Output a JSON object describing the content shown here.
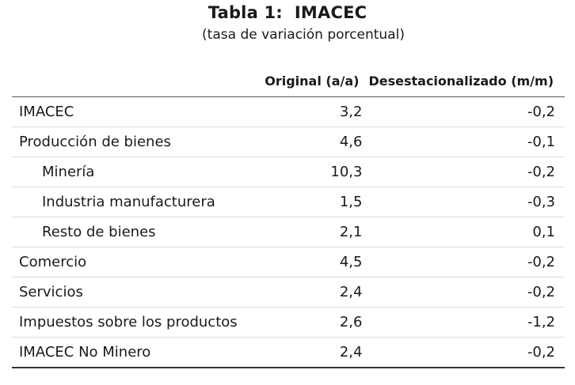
{
  "title": "Tabla 1:  IMACEC",
  "subtitle": "(tasa de variación porcentual)",
  "table": {
    "headers": {
      "label": "",
      "original": "Original (a/a)",
      "desestacionalizado": "Desestacionalizado (m/m)"
    },
    "rows": [
      {
        "label": "IMACEC",
        "original": "3,2",
        "desestacionalizado": "-0,2"
      },
      {
        "label": "Producción de bienes",
        "original": "4,6",
        "desestacionalizado": "-0,1"
      },
      {
        "label": "Minería",
        "original": "10,3",
        "desestacionalizado": "-0,2"
      },
      {
        "label": "Industria manufacturera",
        "original": "1,5",
        "desestacionalizado": "-0,3"
      },
      {
        "label": "Resto de bienes",
        "original": "2,1",
        "desestacionalizado": "0,1"
      },
      {
        "label": "Comercio",
        "original": "4,5",
        "desestacionalizado": "-0,2"
      },
      {
        "label": "Servicios",
        "original": "2,4",
        "desestacionalizado": "-0,2"
      },
      {
        "label": "Impuestos sobre los productos",
        "original": "2,6",
        "desestacionalizado": "-1,2"
      },
      {
        "label": "IMACEC No Minero",
        "original": "2,4",
        "desestacionalizado": "-0,2"
      }
    ]
  }
}
